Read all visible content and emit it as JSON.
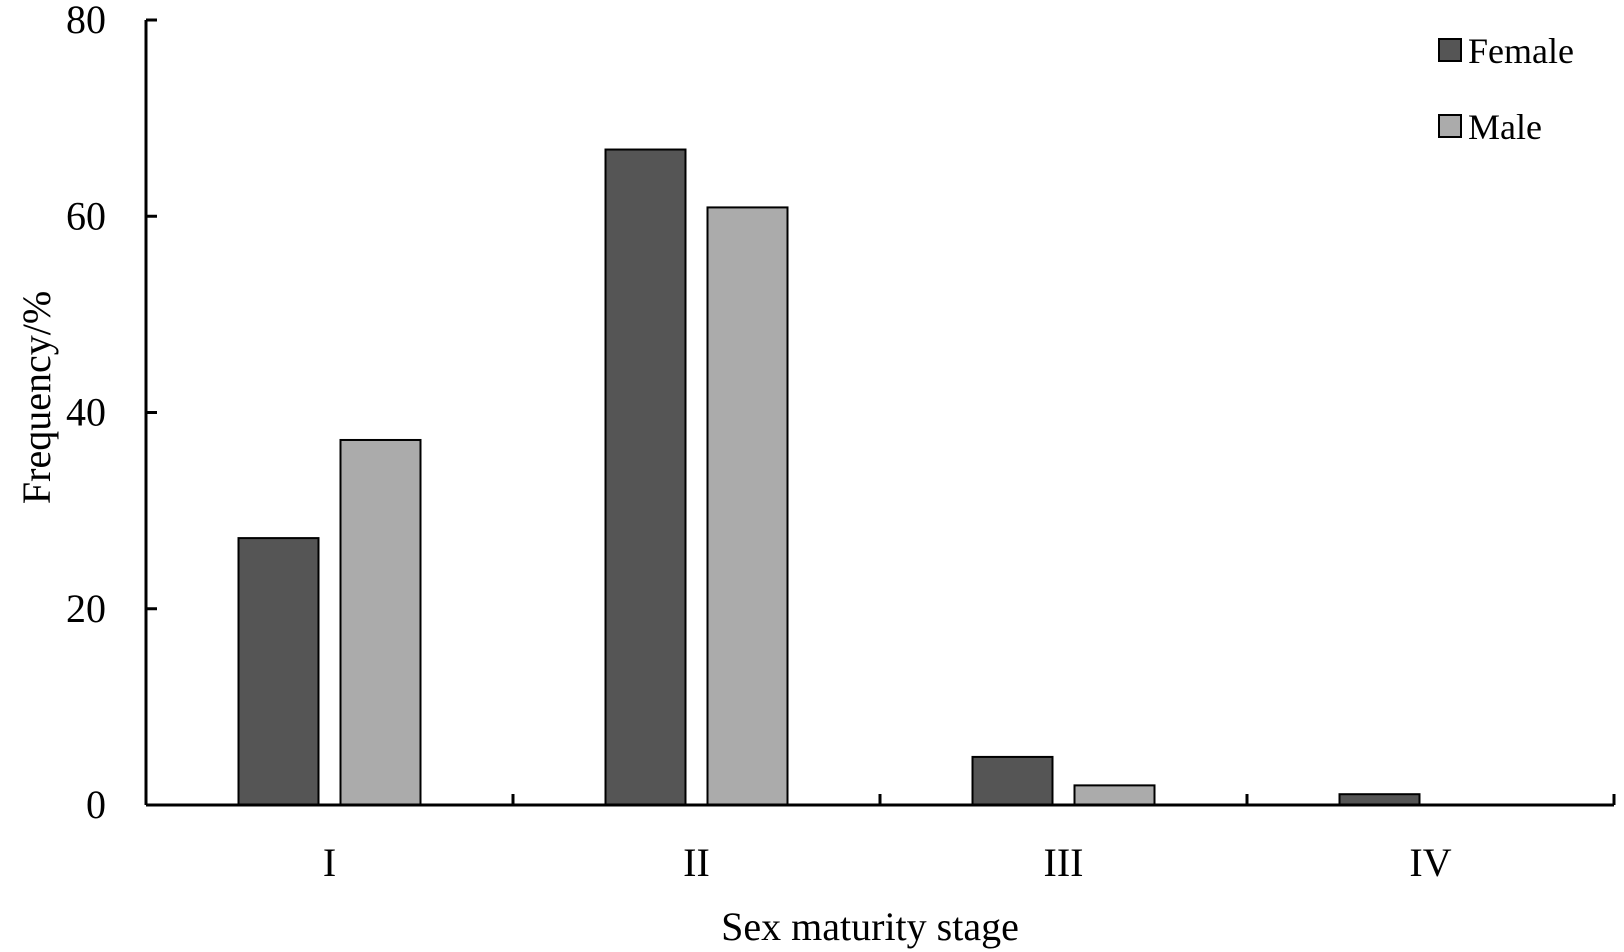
{
  "chart_data": {
    "type": "bar",
    "title": "",
    "xlabel": "Sex maturity stage",
    "ylabel": "Frequency/%",
    "categories": [
      "I",
      "II",
      "III",
      "IV"
    ],
    "series": [
      {
        "name": "Female",
        "color": "#555555",
        "values": [
          27.2,
          66.8,
          4.9,
          1.1
        ]
      },
      {
        "name": "Male",
        "color": "#ababab",
        "values": [
          37.2,
          60.9,
          2.0,
          0
        ]
      }
    ],
    "ylim": [
      0,
      80
    ],
    "yticks": [
      "0",
      "20",
      "40",
      "60",
      "80"
    ],
    "grid": false,
    "legend_position": "top-right"
  }
}
